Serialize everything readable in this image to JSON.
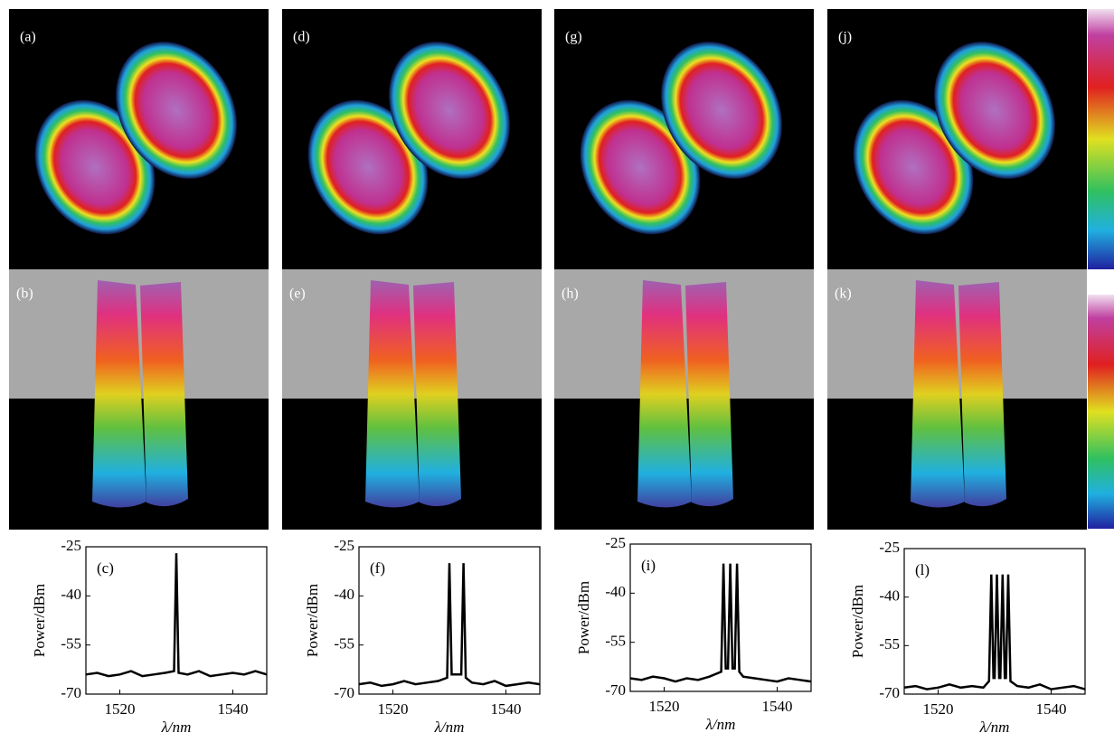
{
  "panels": {
    "top": [
      "(a)",
      "(d)",
      "(g)",
      "(j)"
    ],
    "middle": [
      "(b)",
      "(e)",
      "(h)",
      "(k)"
    ]
  },
  "chart_data": [
    {
      "type": "line",
      "label": "(c)",
      "x_label": "λ/nm",
      "y_label": "Power/dBm",
      "color": "#000000",
      "x": [
        1514,
        1516,
        1518,
        1520,
        1522,
        1524,
        1526,
        1528,
        1529.6,
        1530,
        1530.4,
        1532,
        1534,
        1536,
        1538,
        1540,
        1542,
        1544,
        1546
      ],
      "values": [
        -64,
        -63.5,
        -64.5,
        -64,
        -63,
        -64.5,
        -64,
        -63.5,
        -63,
        -27,
        -63.5,
        -64,
        -63,
        -64.5,
        -64,
        -63.5,
        -64,
        -63,
        -64
      ],
      "xlim": [
        1514,
        1546
      ],
      "ylim": [
        -70,
        -25
      ],
      "xticks": [
        1520,
        1540
      ],
      "yticks": [
        -25,
        -40,
        -55,
        -70
      ]
    },
    {
      "type": "line",
      "label": "(f)",
      "x_label": "λ/nm",
      "y_label": "Power/dBm",
      "color": "#000000",
      "x": [
        1514,
        1516,
        1518,
        1520,
        1522,
        1524,
        1526,
        1528,
        1529.6,
        1530,
        1530.4,
        1532.1,
        1532.5,
        1532.9,
        1534,
        1536,
        1538,
        1540,
        1542,
        1544,
        1546
      ],
      "values": [
        -67,
        -66.5,
        -67.5,
        -67,
        -66,
        -67,
        -66.5,
        -66,
        -65,
        -30,
        -64,
        -64,
        -30,
        -65,
        -66.5,
        -67,
        -66,
        -67.5,
        -67,
        -66.5,
        -67
      ],
      "xlim": [
        1514,
        1546
      ],
      "ylim": [
        -70,
        -25
      ],
      "xticks": [
        1520,
        1540
      ],
      "yticks": [
        -25,
        -40,
        -55,
        -70
      ]
    },
    {
      "type": "line",
      "label": "(i)",
      "x_label": "λ/nm",
      "y_label": "Power/dBm",
      "color": "#000000",
      "x": [
        1514,
        1516,
        1518,
        1520,
        1522,
        1524,
        1526,
        1528,
        1530.1,
        1530.5,
        1530.9,
        1531.3,
        1531.7,
        1532.1,
        1532.5,
        1532.9,
        1533.3,
        1534,
        1536,
        1538,
        1540,
        1542,
        1544,
        1546
      ],
      "values": [
        -66,
        -66.5,
        -65.5,
        -66,
        -67,
        -66,
        -66.5,
        -65.5,
        -64,
        -31,
        -63,
        -63,
        -31,
        -63,
        -63,
        -31,
        -64,
        -65.5,
        -66,
        -66.5,
        -67,
        -66,
        -66.5,
        -67
      ],
      "xlim": [
        1514,
        1546
      ],
      "ylim": [
        -70,
        -25
      ],
      "xticks": [
        1520,
        1540
      ],
      "yticks": [
        -25,
        -40,
        -55,
        -70
      ]
    },
    {
      "type": "line",
      "label": "(l)",
      "x_label": "λ/nm",
      "y_label": "Power/dBm",
      "color": "#000000",
      "x": [
        1514,
        1516,
        1518,
        1520,
        1522,
        1524,
        1526,
        1528,
        1529,
        1529.4,
        1529.8,
        1530,
        1530.4,
        1530.8,
        1531,
        1531.4,
        1531.8,
        1532,
        1532.4,
        1532.8,
        1534,
        1536,
        1538,
        1540,
        1542,
        1544,
        1546
      ],
      "values": [
        -68,
        -67.5,
        -68.5,
        -68,
        -67,
        -68,
        -67.5,
        -68,
        -66,
        -33,
        -65,
        -65,
        -33,
        -65,
        -65,
        -33,
        -65,
        -65,
        -33,
        -66,
        -67.5,
        -68,
        -67,
        -68.5,
        -68,
        -67.5,
        -68.5
      ],
      "xlim": [
        1514,
        1546
      ],
      "ylim": [
        -70,
        -25
      ],
      "xticks": [
        1520,
        1540
      ],
      "yticks": [
        -25,
        -40,
        -55,
        -70
      ]
    }
  ]
}
